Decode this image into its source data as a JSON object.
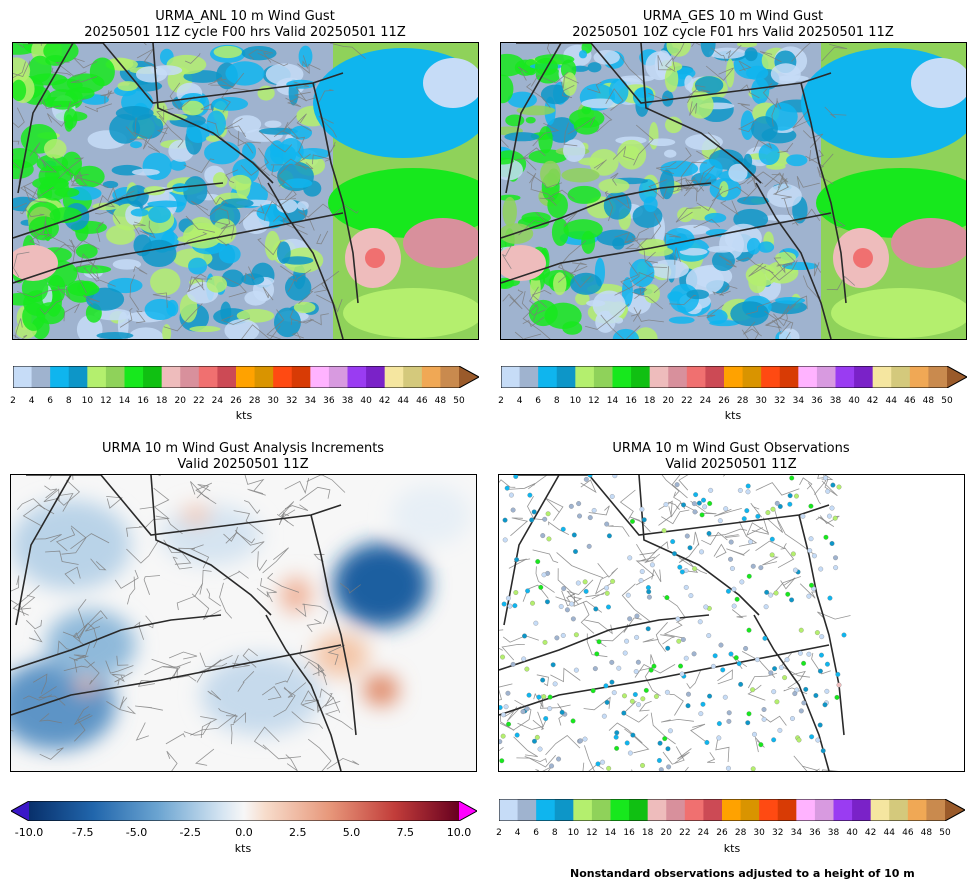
{
  "panels": [
    {
      "id": "anl",
      "title1": "URMA_ANL 10 m Wind Gust",
      "title2": "20250501 11Z cycle F00 hrs Valid 20250501 11Z"
    },
    {
      "id": "ges",
      "title1": "URMA_GES 10 m Wind Gust",
      "title2": "20250501 10Z cycle F01 hrs Valid 20250501 11Z"
    },
    {
      "id": "inc",
      "title1": "URMA 10 m Wind Gust Analysis Increments",
      "title2": "Valid 20250501 11Z"
    },
    {
      "id": "obs",
      "title1": "URMA 10 m Wind Gust Observations",
      "title2": "Valid 20250501 11Z"
    }
  ],
  "footnote": "Nonstandard observations adjusted to a height of 10 m",
  "colorbars": {
    "gust": {
      "unit": "kts",
      "ticks": [
        "2",
        "4",
        "6",
        "8",
        "10",
        "12",
        "14",
        "16",
        "18",
        "20",
        "22",
        "24",
        "26",
        "28",
        "30",
        "32",
        "34",
        "36",
        "38",
        "40",
        "42",
        "44",
        "46",
        "48",
        "50"
      ],
      "colors": [
        "#c6dcf7",
        "#9fb3cf",
        "#0fb5ee",
        "#0d96c8",
        "#b4ef6e",
        "#8fd25a",
        "#17e81d",
        "#10c012",
        "#eebcbc",
        "#d8909c",
        "#f07070",
        "#cc4a55",
        "#ffa200",
        "#d99400",
        "#ff4a12",
        "#d83b05",
        "#ffb3ff",
        "#d89ae0",
        "#9a3cf2",
        "#7a22c8",
        "#f5e6a0",
        "#d4c97c",
        "#f0a855",
        "#c98a4e"
      ],
      "over": "#9a5a2a"
    },
    "increment": {
      "unit": "kts",
      "ticks": [
        "-10.0",
        "-7.5",
        "-5.0",
        "-2.5",
        "0.0",
        "2.5",
        "5.0",
        "7.5",
        "10.0"
      ],
      "min": -10,
      "max": 10,
      "under": "#3a18c8",
      "over": "#ff00ff"
    }
  },
  "chart_data": [
    {
      "type": "heatmap",
      "title": "URMA_ANL 10 m Wind Gust 20250501 11Z cycle F00 hrs Valid 20250501 11Z",
      "colorbar_label": "kts",
      "levels": [
        2,
        4,
        6,
        8,
        10,
        12,
        14,
        16,
        18,
        20,
        22,
        24,
        26,
        28,
        30,
        32,
        34,
        36,
        38,
        40,
        42,
        44,
        46,
        48,
        50
      ]
    },
    {
      "type": "heatmap",
      "title": "URMA_GES 10 m Wind Gust 20250501 10Z cycle F01 hrs Valid 20250501 11Z",
      "colorbar_label": "kts",
      "levels": [
        2,
        4,
        6,
        8,
        10,
        12,
        14,
        16,
        18,
        20,
        22,
        24,
        26,
        28,
        30,
        32,
        34,
        36,
        38,
        40,
        42,
        44,
        46,
        48,
        50
      ]
    },
    {
      "type": "heatmap",
      "title": "URMA 10 m Wind Gust Analysis Increments Valid 20250501 11Z",
      "colorbar_label": "kts",
      "range": [
        -10,
        10
      ]
    },
    {
      "type": "scatter",
      "title": "URMA 10 m Wind Gust Observations Valid 20250501 11Z",
      "colorbar_label": "kts",
      "levels": [
        2,
        4,
        6,
        8,
        10,
        12,
        14,
        16,
        18,
        20,
        22,
        24,
        26,
        28,
        30,
        32,
        34,
        36,
        38,
        40,
        42,
        44,
        46,
        48,
        50
      ]
    }
  ]
}
